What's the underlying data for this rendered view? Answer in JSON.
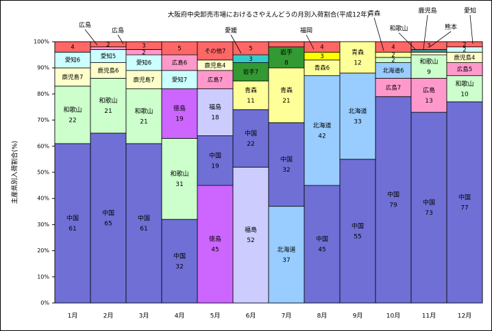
{
  "chart_data": {
    "type": "bar",
    "stacked": true,
    "percent": true,
    "title": "大阪府中央卸売市場におけるさやえんどうの月別入荷割合(平成12年)",
    "ylabel": "主産県別入荷割合(%)",
    "ylim": [
      0,
      100
    ],
    "yticks": [
      "0%",
      "10%",
      "20%",
      "30%",
      "40%",
      "50%",
      "60%",
      "70%",
      "80%",
      "90%",
      "100%"
    ],
    "categories": [
      "1月",
      "2月",
      "3月",
      "4月",
      "5月",
      "6月",
      "7月",
      "8月",
      "9月",
      "10月",
      "11月",
      "12月"
    ],
    "colors": {
      "中国": "#6f6fd6",
      "和歌山": "#ccffcc",
      "鹿児島": "#ffffcc",
      "愛知": "#ccffff",
      "広島": "#ff99cc",
      "徳島": "#cc66ff",
      "福島": "#ccccff",
      "青森": "#ffff99",
      "北海道": "#99ccff",
      "岩手": "#339933",
      "福岡": "#ffff00",
      "熊本": "#339999",
      "愛媛": "#33cccc",
      "その他": "#ff6666"
    },
    "months": [
      {
        "segments": [
          {
            "name": "中国",
            "value": 61,
            "label": "中国\n61"
          },
          {
            "name": "和歌山",
            "value": 22,
            "label": "和歌山\n22"
          },
          {
            "name": "鹿児島",
            "value": 7,
            "label": "鹿児島7"
          },
          {
            "name": "愛知",
            "value": 6,
            "label": "愛知6"
          },
          {
            "name": "広島",
            "value": 0,
            "label": ""
          },
          {
            "name": "その他",
            "value": 4,
            "label": "4"
          }
        ]
      },
      {
        "segments": [
          {
            "name": "中国",
            "value": 65,
            "label": "中国\n65"
          },
          {
            "name": "和歌山",
            "value": 21,
            "label": "和歌山\n21"
          },
          {
            "name": "鹿児島",
            "value": 6,
            "label": "鹿児島6"
          },
          {
            "name": "愛知",
            "value": 5,
            "label": "愛知5"
          },
          {
            "name": "広島",
            "value": 1,
            "label": ""
          },
          {
            "name": "その他",
            "value": 2,
            "label": "2"
          }
        ]
      },
      {
        "segments": [
          {
            "name": "中国",
            "value": 61,
            "label": "中国\n61"
          },
          {
            "name": "和歌山",
            "value": 21,
            "label": "和歌山\n21"
          },
          {
            "name": "鹿児島",
            "value": 7,
            "label": "鹿児島7"
          },
          {
            "name": "愛知",
            "value": 6,
            "label": "愛知6"
          },
          {
            "name": "広島",
            "value": 2,
            "label": "2"
          },
          {
            "name": "その他",
            "value": 3,
            "label": "3"
          }
        ]
      },
      {
        "segments": [
          {
            "name": "中国",
            "value": 32,
            "label": "中国\n32"
          },
          {
            "name": "和歌山",
            "value": 31,
            "label": "和歌山\n31"
          },
          {
            "name": "徳島",
            "value": 19,
            "label": "徳島\n19"
          },
          {
            "name": "愛知",
            "value": 7,
            "label": "愛知7"
          },
          {
            "name": "広島",
            "value": 6,
            "label": "広島6"
          },
          {
            "name": "その他",
            "value": 5,
            "label": "5"
          }
        ]
      },
      {
        "segments": [
          {
            "name": "徳島",
            "value": 45,
            "label": "徳島\n45"
          },
          {
            "name": "中国",
            "value": 19,
            "label": "中国\n19"
          },
          {
            "name": "福島",
            "value": 18,
            "label": "福島\n18"
          },
          {
            "name": "広島",
            "value": 7,
            "label": "広島7"
          },
          {
            "name": "鹿児島",
            "value": 4,
            "label": "鹿児島4"
          },
          {
            "name": "その他",
            "value": 7,
            "label": "その他7"
          }
        ]
      },
      {
        "segments": [
          {
            "name": "福島",
            "value": 52,
            "label": "福島\n52"
          },
          {
            "name": "中国",
            "value": 22,
            "label": "中国\n22"
          },
          {
            "name": "青森",
            "value": 11,
            "label": "青森\n11"
          },
          {
            "name": "岩手",
            "value": 7,
            "label": "岩手7"
          },
          {
            "name": "愛媛",
            "value": 3,
            "label": "3"
          },
          {
            "name": "その他",
            "value": 5,
            "label": "5"
          }
        ]
      },
      {
        "segments": [
          {
            "name": "北海道",
            "value": 37,
            "label": "北海道\n37"
          },
          {
            "name": "中国",
            "value": 32,
            "label": "中国\n32"
          },
          {
            "name": "青森",
            "value": 21,
            "label": "青森\n21"
          },
          {
            "name": "岩手",
            "value": 8,
            "label": "岩手\n8"
          },
          {
            "name": "その他",
            "value": 2,
            "label": ""
          }
        ]
      },
      {
        "segments": [
          {
            "name": "中国",
            "value": 45,
            "label": "中国\n45"
          },
          {
            "name": "北海道",
            "value": 42,
            "label": "北海道\n42"
          },
          {
            "name": "青森",
            "value": 6,
            "label": "青森6"
          },
          {
            "name": "福岡",
            "value": 3,
            "label": "3"
          },
          {
            "name": "その他",
            "value": 4,
            "label": "4"
          }
        ]
      },
      {
        "segments": [
          {
            "name": "中国",
            "value": 55,
            "label": "中国\n55"
          },
          {
            "name": "北海道",
            "value": 33,
            "label": "北海道\n33"
          },
          {
            "name": "青森",
            "value": 12,
            "label": "青森\n12"
          }
        ]
      },
      {
        "segments": [
          {
            "name": "中国",
            "value": 79,
            "label": "中国\n79"
          },
          {
            "name": "広島",
            "value": 7,
            "label": "広島7"
          },
          {
            "name": "北海道",
            "value": 6,
            "label": "北海道6"
          },
          {
            "name": "和歌山",
            "value": 2,
            "label": "2"
          },
          {
            "name": "青森",
            "value": 2,
            "label": "2"
          },
          {
            "name": "その他",
            "value": 4,
            "label": "4"
          }
        ]
      },
      {
        "segments": [
          {
            "name": "中国",
            "value": 73,
            "label": "中国\n73"
          },
          {
            "name": "広島",
            "value": 13,
            "label": "広島\n13"
          },
          {
            "name": "和歌山",
            "value": 9,
            "label": "和歌山\n9"
          },
          {
            "name": "鹿児島",
            "value": 1,
            "label": ""
          },
          {
            "name": "熊本",
            "value": 1,
            "label": ""
          },
          {
            "name": "その他",
            "value": 3,
            "label": "3"
          }
        ]
      },
      {
        "segments": [
          {
            "name": "中国",
            "value": 77,
            "label": "中国\n77"
          },
          {
            "name": "和歌山",
            "value": 10,
            "label": "和歌山\n10"
          },
          {
            "name": "広島",
            "value": 5,
            "label": "広島5"
          },
          {
            "name": "鹿児島",
            "value": 4,
            "label": "鹿児島4"
          },
          {
            "name": "愛知",
            "value": 2,
            "label": "2"
          },
          {
            "name": "その他",
            "value": 2,
            "label": "2"
          }
        ]
      }
    ],
    "callouts": [
      {
        "text": "広島",
        "month": "1月"
      },
      {
        "text": "広島",
        "month": "2月"
      },
      {
        "text": "愛媛",
        "month": "6月"
      },
      {
        "text": "福岡",
        "month": "8月"
      },
      {
        "text": "青森",
        "month": "10月"
      },
      {
        "text": "和歌山",
        "month": "11月"
      },
      {
        "text": "鹿児島",
        "month": "11月"
      },
      {
        "text": "熊本",
        "month": "11月"
      },
      {
        "text": "愛知",
        "month": "12月"
      }
    ]
  }
}
